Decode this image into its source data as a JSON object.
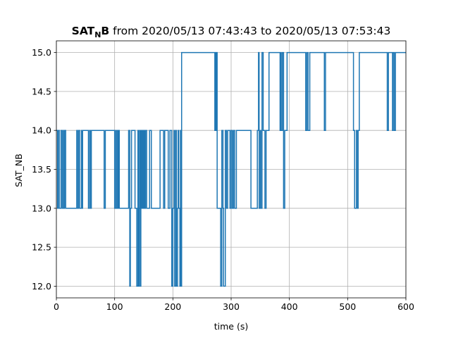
{
  "chart_data": {
    "type": "line",
    "title_prefix": "SAT",
    "title_subscript": "N",
    "title_bold_suffix": "B",
    "title_rest": " from 2020/05/13 07:43:43 to 2020/05/13 07:53:43",
    "xlabel": "time (s)",
    "ylabel": "SAT_NB",
    "xlim": [
      0,
      600
    ],
    "ylim": [
      11.85,
      15.15
    ],
    "xticks": [
      "0",
      "100",
      "200",
      "300",
      "400",
      "500",
      "600"
    ],
    "yticks": [
      "12.0",
      "12.5",
      "13.0",
      "13.5",
      "14.0",
      "14.5",
      "15.0"
    ],
    "grid": true,
    "step": "post",
    "color": "#1f77b4",
    "series": [
      {
        "x": [
          0,
          2,
          3,
          5,
          8,
          10,
          12,
          13,
          14,
          16,
          18,
          20,
          35,
          36,
          38,
          40,
          43,
          44,
          45,
          47,
          55,
          57,
          59,
          60,
          62,
          65,
          75,
          82,
          84,
          86,
          88,
          100,
          102,
          103,
          105,
          106,
          107,
          108,
          110,
          118,
          124,
          126,
          127,
          129,
          130,
          135,
          138,
          140,
          141,
          142,
          143,
          144,
          145,
          146,
          147,
          148,
          149,
          150,
          151,
          152,
          153,
          155,
          160,
          163,
          168,
          174,
          178,
          180,
          184,
          186,
          188,
          192,
          195,
          198,
          200,
          202,
          203,
          205,
          206,
          208,
          209,
          210,
          212,
          213,
          214,
          215,
          216,
          218,
          235,
          255,
          260,
          270,
          272,
          273,
          274,
          275,
          276,
          278,
          282,
          284,
          286,
          287,
          290,
          292,
          294,
          298,
          300,
          302,
          304,
          306,
          309,
          310,
          312,
          314,
          322,
          330,
          334,
          340,
          345,
          347,
          348,
          350,
          351,
          353,
          355,
          358,
          360,
          362,
          365,
          368,
          370,
          372,
          378,
          382,
          384,
          385,
          386,
          388,
          390,
          392,
          394,
          396,
          398,
          402,
          410,
          418,
          425,
          428,
          430,
          432,
          435,
          440,
          450,
          456,
          460,
          462,
          470,
          490,
          505,
          510,
          512,
          515,
          517,
          518,
          520,
          522,
          535,
          550,
          566,
          568,
          570,
          572,
          575,
          577,
          578,
          580,
          582,
          585,
          600
        ],
        "y": [
          14,
          13,
          14,
          13,
          14,
          13,
          14,
          13,
          14,
          13,
          13,
          13,
          14,
          13,
          14,
          13,
          14,
          13,
          14,
          14,
          13,
          14,
          13,
          14,
          14,
          14,
          14,
          13,
          14,
          14,
          14,
          13,
          14,
          13,
          14,
          13,
          14,
          13,
          13,
          13,
          14,
          12,
          13,
          14,
          14,
          13,
          12,
          14,
          12,
          13,
          14,
          12,
          14,
          13,
          14,
          13,
          14,
          13,
          14,
          13,
          14,
          13,
          14,
          13,
          13,
          13,
          14,
          14,
          13,
          14,
          14,
          13,
          14,
          12,
          13,
          14,
          12,
          14,
          12,
          13,
          14,
          13,
          12,
          14,
          12,
          15,
          15,
          15,
          15,
          15,
          15,
          15,
          14,
          15,
          14,
          15,
          13,
          13,
          12,
          14,
          13,
          12,
          14,
          13,
          14,
          13,
          14,
          13,
          14,
          13,
          14,
          14,
          14,
          14,
          14,
          14,
          13,
          13,
          14,
          15,
          13,
          14,
          13,
          15,
          14,
          13,
          14,
          14,
          15,
          15,
          15,
          15,
          15,
          15,
          14,
          15,
          14,
          15,
          13,
          14,
          14,
          15,
          15,
          15,
          15,
          15,
          15,
          14,
          15,
          14,
          15,
          15,
          15,
          15,
          14,
          15,
          15,
          15,
          15,
          14,
          13,
          14,
          13,
          14,
          15,
          15,
          15,
          15,
          15,
          14,
          15,
          15,
          15,
          14,
          15,
          14,
          15,
          15,
          15
        ]
      }
    ]
  }
}
